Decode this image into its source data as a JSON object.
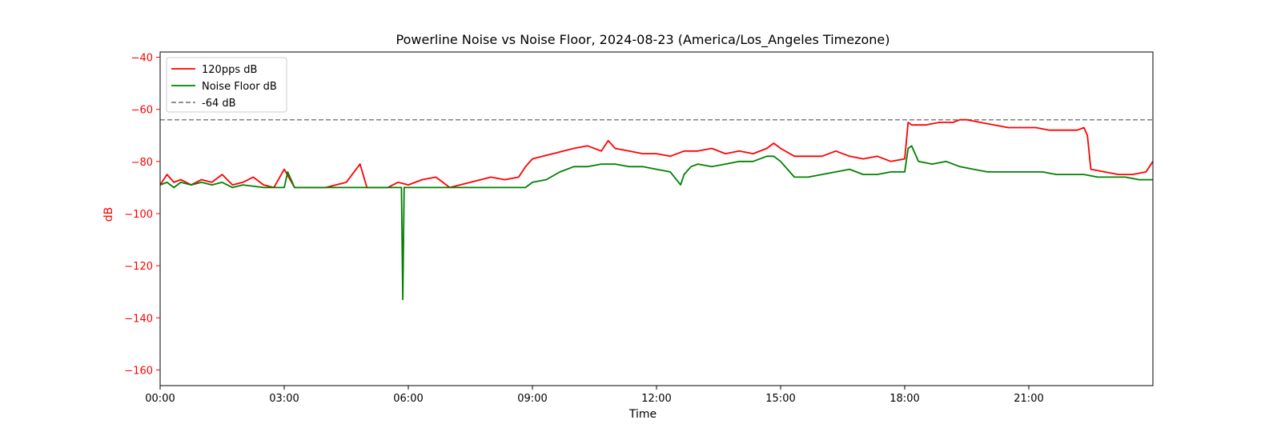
{
  "chart_data": {
    "type": "line",
    "title": "Powerline Noise vs Noise Floor, 2024-08-23 (America/Los_Angeles Timezone)",
    "xlabel": "Time",
    "ylabel": "dB",
    "xlim": [
      "00:00",
      "24:00"
    ],
    "ylim": [
      -166,
      -38
    ],
    "x_ticks": [
      "00:00",
      "03:00",
      "06:00",
      "09:00",
      "12:00",
      "15:00",
      "18:00",
      "21:00"
    ],
    "y_ticks": [
      -40,
      -60,
      -80,
      -100,
      -120,
      -140,
      -160
    ],
    "ylabel_color": "#ff0000",
    "grid": false,
    "legend_position": "top-left",
    "legend": [
      "120pps dB",
      "Noise Floor dB",
      "-64 dB"
    ],
    "reference_line": {
      "name": "-64 dB",
      "y": -64,
      "color": "#808080",
      "style": "dashed"
    },
    "series": [
      {
        "name": "120pps dB",
        "color": "#ff0000",
        "x": [
          "00:00",
          "00:10",
          "00:20",
          "00:30",
          "00:45",
          "01:00",
          "01:15",
          "01:30",
          "01:45",
          "02:00",
          "02:15",
          "02:30",
          "02:45",
          "03:00",
          "03:15",
          "03:30",
          "04:00",
          "04:30",
          "04:50",
          "05:00",
          "05:30",
          "05:45",
          "06:00",
          "06:20",
          "06:40",
          "07:00",
          "07:30",
          "08:00",
          "08:20",
          "08:40",
          "08:50",
          "09:00",
          "09:15",
          "09:30",
          "09:45",
          "10:00",
          "10:20",
          "10:40",
          "10:50",
          "11:00",
          "11:20",
          "11:40",
          "12:00",
          "12:20",
          "12:40",
          "13:00",
          "13:20",
          "13:40",
          "14:00",
          "14:20",
          "14:40",
          "14:50",
          "15:00",
          "15:20",
          "15:40",
          "16:00",
          "16:20",
          "16:40",
          "17:00",
          "17:20",
          "17:40",
          "18:00",
          "18:05",
          "18:10",
          "18:30",
          "18:50",
          "19:10",
          "19:20",
          "19:30",
          "19:50",
          "20:10",
          "20:30",
          "20:50",
          "21:10",
          "21:30",
          "21:50",
          "22:10",
          "22:20",
          "22:25",
          "22:30",
          "22:50",
          "23:10",
          "23:30",
          "23:50",
          "24:00"
        ],
        "values": [
          -89,
          -85,
          -88,
          -87,
          -89,
          -87,
          -88,
          -85,
          -89,
          -88,
          -86,
          -89,
          -90,
          -83,
          -90,
          -90,
          -90,
          -88,
          -81,
          -90,
          -90,
          -88,
          -89,
          -87,
          -86,
          -90,
          -88,
          -86,
          -87,
          -86,
          -82,
          -79,
          -78,
          -77,
          -76,
          -75,
          -74,
          -76,
          -72,
          -75,
          -76,
          -77,
          -77,
          -78,
          -76,
          -76,
          -75,
          -77,
          -76,
          -77,
          -75,
          -73,
          -75,
          -78,
          -78,
          -78,
          -76,
          -78,
          -79,
          -78,
          -80,
          -79,
          -65,
          -66,
          -66,
          -65,
          -65,
          -64,
          -64,
          -65,
          -66,
          -67,
          -67,
          -67,
          -68,
          -68,
          -68,
          -67,
          -70,
          -83,
          -84,
          -85,
          -85,
          -84,
          -80
        ]
      },
      {
        "name": "Noise Floor dB",
        "color": "#008000",
        "x": [
          "00:00",
          "00:10",
          "00:20",
          "00:30",
          "00:45",
          "01:00",
          "01:15",
          "01:30",
          "01:45",
          "02:00",
          "02:30",
          "03:00",
          "03:05",
          "03:15",
          "04:00",
          "05:00",
          "05:50",
          "05:52",
          "05:54",
          "06:00",
          "07:00",
          "08:00",
          "08:50",
          "09:00",
          "09:20",
          "09:40",
          "10:00",
          "10:20",
          "10:40",
          "11:00",
          "11:20",
          "11:40",
          "12:00",
          "12:20",
          "12:35",
          "12:40",
          "12:50",
          "13:00",
          "13:20",
          "13:40",
          "14:00",
          "14:20",
          "14:40",
          "14:50",
          "15:00",
          "15:20",
          "15:40",
          "16:00",
          "16:20",
          "16:40",
          "17:00",
          "17:20",
          "17:40",
          "18:00",
          "18:05",
          "18:10",
          "18:20",
          "18:40",
          "19:00",
          "19:20",
          "19:40",
          "20:00",
          "20:20",
          "20:40",
          "21:00",
          "21:20",
          "21:40",
          "22:00",
          "22:20",
          "22:40",
          "23:00",
          "23:20",
          "23:40",
          "24:00"
        ],
        "values": [
          -89,
          -88,
          -90,
          -88,
          -89,
          -88,
          -89,
          -88,
          -90,
          -89,
          -90,
          -90,
          -84,
          -90,
          -90,
          -90,
          -90,
          -133,
          -90,
          -90,
          -90,
          -90,
          -90,
          -88,
          -87,
          -84,
          -82,
          -82,
          -81,
          -81,
          -82,
          -82,
          -83,
          -84,
          -89,
          -85,
          -82,
          -81,
          -82,
          -81,
          -80,
          -80,
          -78,
          -78,
          -80,
          -86,
          -86,
          -85,
          -84,
          -83,
          -85,
          -85,
          -84,
          -84,
          -75,
          -74,
          -80,
          -81,
          -80,
          -82,
          -83,
          -84,
          -84,
          -84,
          -84,
          -84,
          -85,
          -85,
          -85,
          -86,
          -86,
          -86,
          -87,
          -87
        ]
      }
    ]
  }
}
